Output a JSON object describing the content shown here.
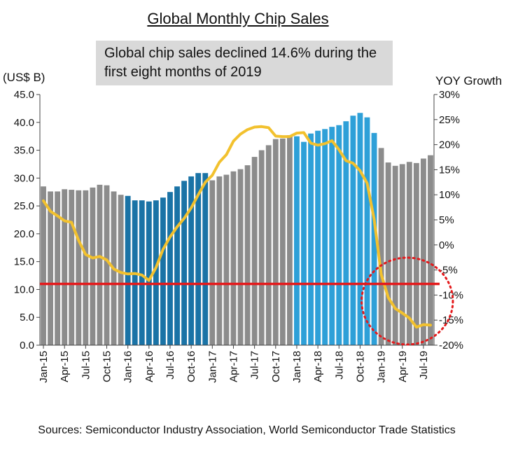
{
  "chart_data": {
    "type": "bar",
    "title": "Global Monthly Chip Sales",
    "annotation": "Global chip sales declined 14.6% during the first eight months of 2019",
    "ylabel_left": "(US$ B)",
    "ylabel_right": "YOY Growth",
    "ylim_left": [
      0,
      45
    ],
    "ylim_right": [
      -20,
      30
    ],
    "yticks_left": [
      "0.0",
      "5.0",
      "10.0",
      "15.0",
      "20.0",
      "25.0",
      "30.0",
      "35.0",
      "40.0",
      "45.0"
    ],
    "yticks_right": [
      "-20%",
      "-15%",
      "-10%",
      "-5%",
      "0%",
      "5%",
      "10%",
      "15%",
      "20%",
      "25%",
      "30%"
    ],
    "x_ticks": [
      "Jan-15",
      "Apr-15",
      "Jul-15",
      "Oct-15",
      "Jan-16",
      "Apr-16",
      "Jul-16",
      "Oct-16",
      "Jan-17",
      "Apr-17",
      "Jul-17",
      "Oct-17",
      "Jan-18",
      "Apr-18",
      "Jul-18",
      "Oct-18",
      "Jan-19",
      "Apr-19",
      "Jul-19"
    ],
    "grid": false,
    "series": [
      {
        "type": "bar",
        "axis": "left",
        "x": [
          "Jan-15",
          "Feb-15",
          "Mar-15",
          "Apr-15",
          "May-15",
          "Jun-15",
          "Jul-15",
          "Aug-15",
          "Sep-15",
          "Oct-15",
          "Nov-15",
          "Dec-15",
          "Jan-16",
          "Feb-16",
          "Mar-16",
          "Apr-16",
          "May-16",
          "Jun-16",
          "Jul-16",
          "Aug-16",
          "Sep-16",
          "Oct-16",
          "Nov-16",
          "Dec-16",
          "Jan-17",
          "Feb-17",
          "Mar-17",
          "Apr-17",
          "May-17",
          "Jun-17",
          "Jul-17",
          "Aug-17",
          "Sep-17",
          "Oct-17",
          "Nov-17",
          "Dec-17",
          "Jan-18",
          "Feb-18",
          "Mar-18",
          "Apr-18",
          "May-18",
          "Jun-18",
          "Jul-18",
          "Aug-18",
          "Sep-18",
          "Oct-18",
          "Nov-18",
          "Dec-18",
          "Jan-19",
          "Feb-19",
          "Mar-19",
          "Apr-19",
          "May-19",
          "Jun-19",
          "Jul-19",
          "Aug-19"
        ],
        "values": [
          28.5,
          27.6,
          27.6,
          28.0,
          27.9,
          27.8,
          27.8,
          28.3,
          28.8,
          28.7,
          27.6,
          27.0,
          26.8,
          26.0,
          26.0,
          25.8,
          26.0,
          26.5,
          27.5,
          28.5,
          29.5,
          30.3,
          30.9,
          30.9,
          29.6,
          30.3,
          30.6,
          31.2,
          31.6,
          32.3,
          33.8,
          35.0,
          35.9,
          37.0,
          37.1,
          37.7,
          37.5,
          36.5,
          38.0,
          38.5,
          38.8,
          39.2,
          39.5,
          40.2,
          41.2,
          41.7,
          40.9,
          38.1,
          35.4,
          32.8,
          32.2,
          32.5,
          32.9,
          32.7,
          33.5,
          34.1
        ],
        "colors": {
          "gray": "#8c8c8c",
          "dark_blue": "#1a73a6",
          "light_blue": "#2ea0d8"
        },
        "highlight_ranges": [
          {
            "from": "Jan-16",
            "to": "Dec-16",
            "color": "dark_blue"
          },
          {
            "from": "Jan-18",
            "to": "Dec-18",
            "color": "light_blue"
          }
        ]
      },
      {
        "type": "line",
        "axis": "right",
        "color": "#f2c12e",
        "values": [
          8.8,
          6.7,
          5.8,
          4.8,
          4.5,
          0.9,
          -1.9,
          -2.6,
          -2.3,
          -3.0,
          -4.8,
          -5.5,
          -5.8,
          -5.7,
          -6.0,
          -7.1,
          -4.5,
          -0.9,
          1.6,
          3.6,
          5.3,
          7.4,
          10.0,
          12.5,
          13.9,
          16.5,
          18.0,
          20.7,
          22.1,
          23.0,
          23.5,
          23.6,
          23.4,
          21.7,
          21.6,
          21.6,
          22.3,
          22.4,
          20.3,
          19.9,
          20.2,
          20.8,
          19.0,
          16.8,
          16.3,
          14.8,
          12.3,
          5.1,
          -5.9,
          -10.5,
          -12.7,
          -13.6,
          -14.6,
          -16.4,
          -15.9,
          -16.0
        ]
      },
      {
        "type": "reference_line",
        "axis": "left",
        "value": 11.0,
        "color": "#e41a1c"
      }
    ],
    "circle_highlight": {
      "from": "Jan-19",
      "to": "Aug-19",
      "color": "#e41a1c",
      "style": "dotted"
    },
    "source": "Sources: Semiconductor Industry Association, World Semiconductor Trade Statistics"
  }
}
